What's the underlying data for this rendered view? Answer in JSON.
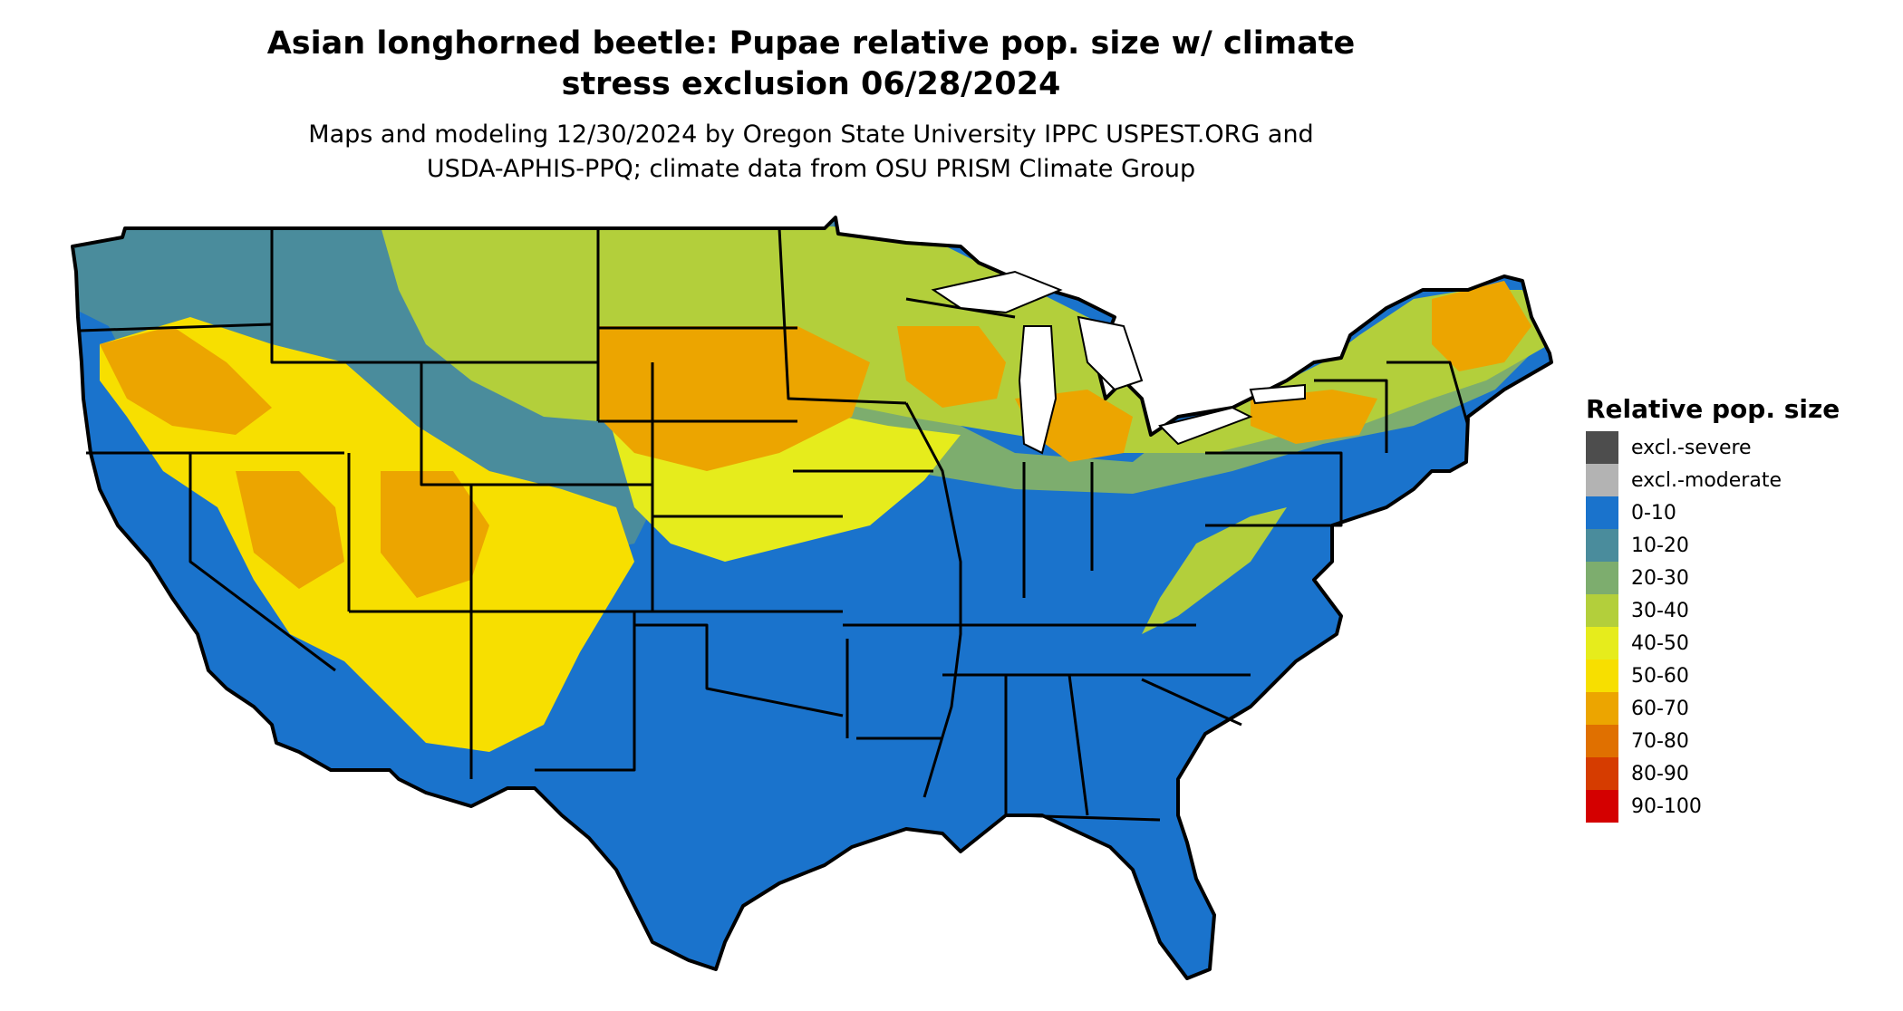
{
  "title": {
    "line1": "Asian longhorned beetle: Pupae relative pop. size w/ climate",
    "line2": "stress exclusion 06/28/2024"
  },
  "subtitle": {
    "line1": "Maps and modeling 12/30/2024 by Oregon State University IPPC USPEST.ORG and",
    "line2": "USDA-APHIS-PPQ; climate data from OSU PRISM Climate Group"
  },
  "legend": {
    "title": "Relative pop. size",
    "items": [
      {
        "label": "excl.-severe",
        "color": "#4d4d4d"
      },
      {
        "label": "excl.-moderate",
        "color": "#b3b3b3"
      },
      {
        "label": "0-10",
        "color": "#1a73cc"
      },
      {
        "label": "10-20",
        "color": "#4a8c9c"
      },
      {
        "label": "20-30",
        "color": "#7dad6e"
      },
      {
        "label": "30-40",
        "color": "#b3cf3b"
      },
      {
        "label": "40-50",
        "color": "#e6ec1c"
      },
      {
        "label": "50-60",
        "color": "#f7df00"
      },
      {
        "label": "60-70",
        "color": "#eca500"
      },
      {
        "label": "70-80",
        "color": "#e07000"
      },
      {
        "label": "80-90",
        "color": "#d63c00"
      },
      {
        "label": "90-100",
        "color": "#d40000"
      }
    ]
  },
  "map": {
    "region": "Contiguous United States",
    "zones": [
      {
        "name": "southeast-and-south-central",
        "class": "0-10",
        "color": "#1a73cc"
      },
      {
        "name": "southwest-desert",
        "class": "0-10",
        "color": "#1a73cc"
      },
      {
        "name": "west-mountains",
        "class": "10-20",
        "color": "#4a8c9c"
      },
      {
        "name": "midwest-transition",
        "class": "20-30",
        "color": "#7dad6e"
      },
      {
        "name": "northern-plains-upper-midwest",
        "class": "30-40",
        "color": "#b3cf3b"
      },
      {
        "name": "great-basin-interior-west",
        "class": "50-60",
        "color": "#f7df00"
      },
      {
        "name": "northern-high-plains",
        "class": "60-70",
        "color": "#eca500"
      },
      {
        "name": "great-lakes-northeast",
        "class": "60-70",
        "color": "#eca500"
      }
    ]
  }
}
